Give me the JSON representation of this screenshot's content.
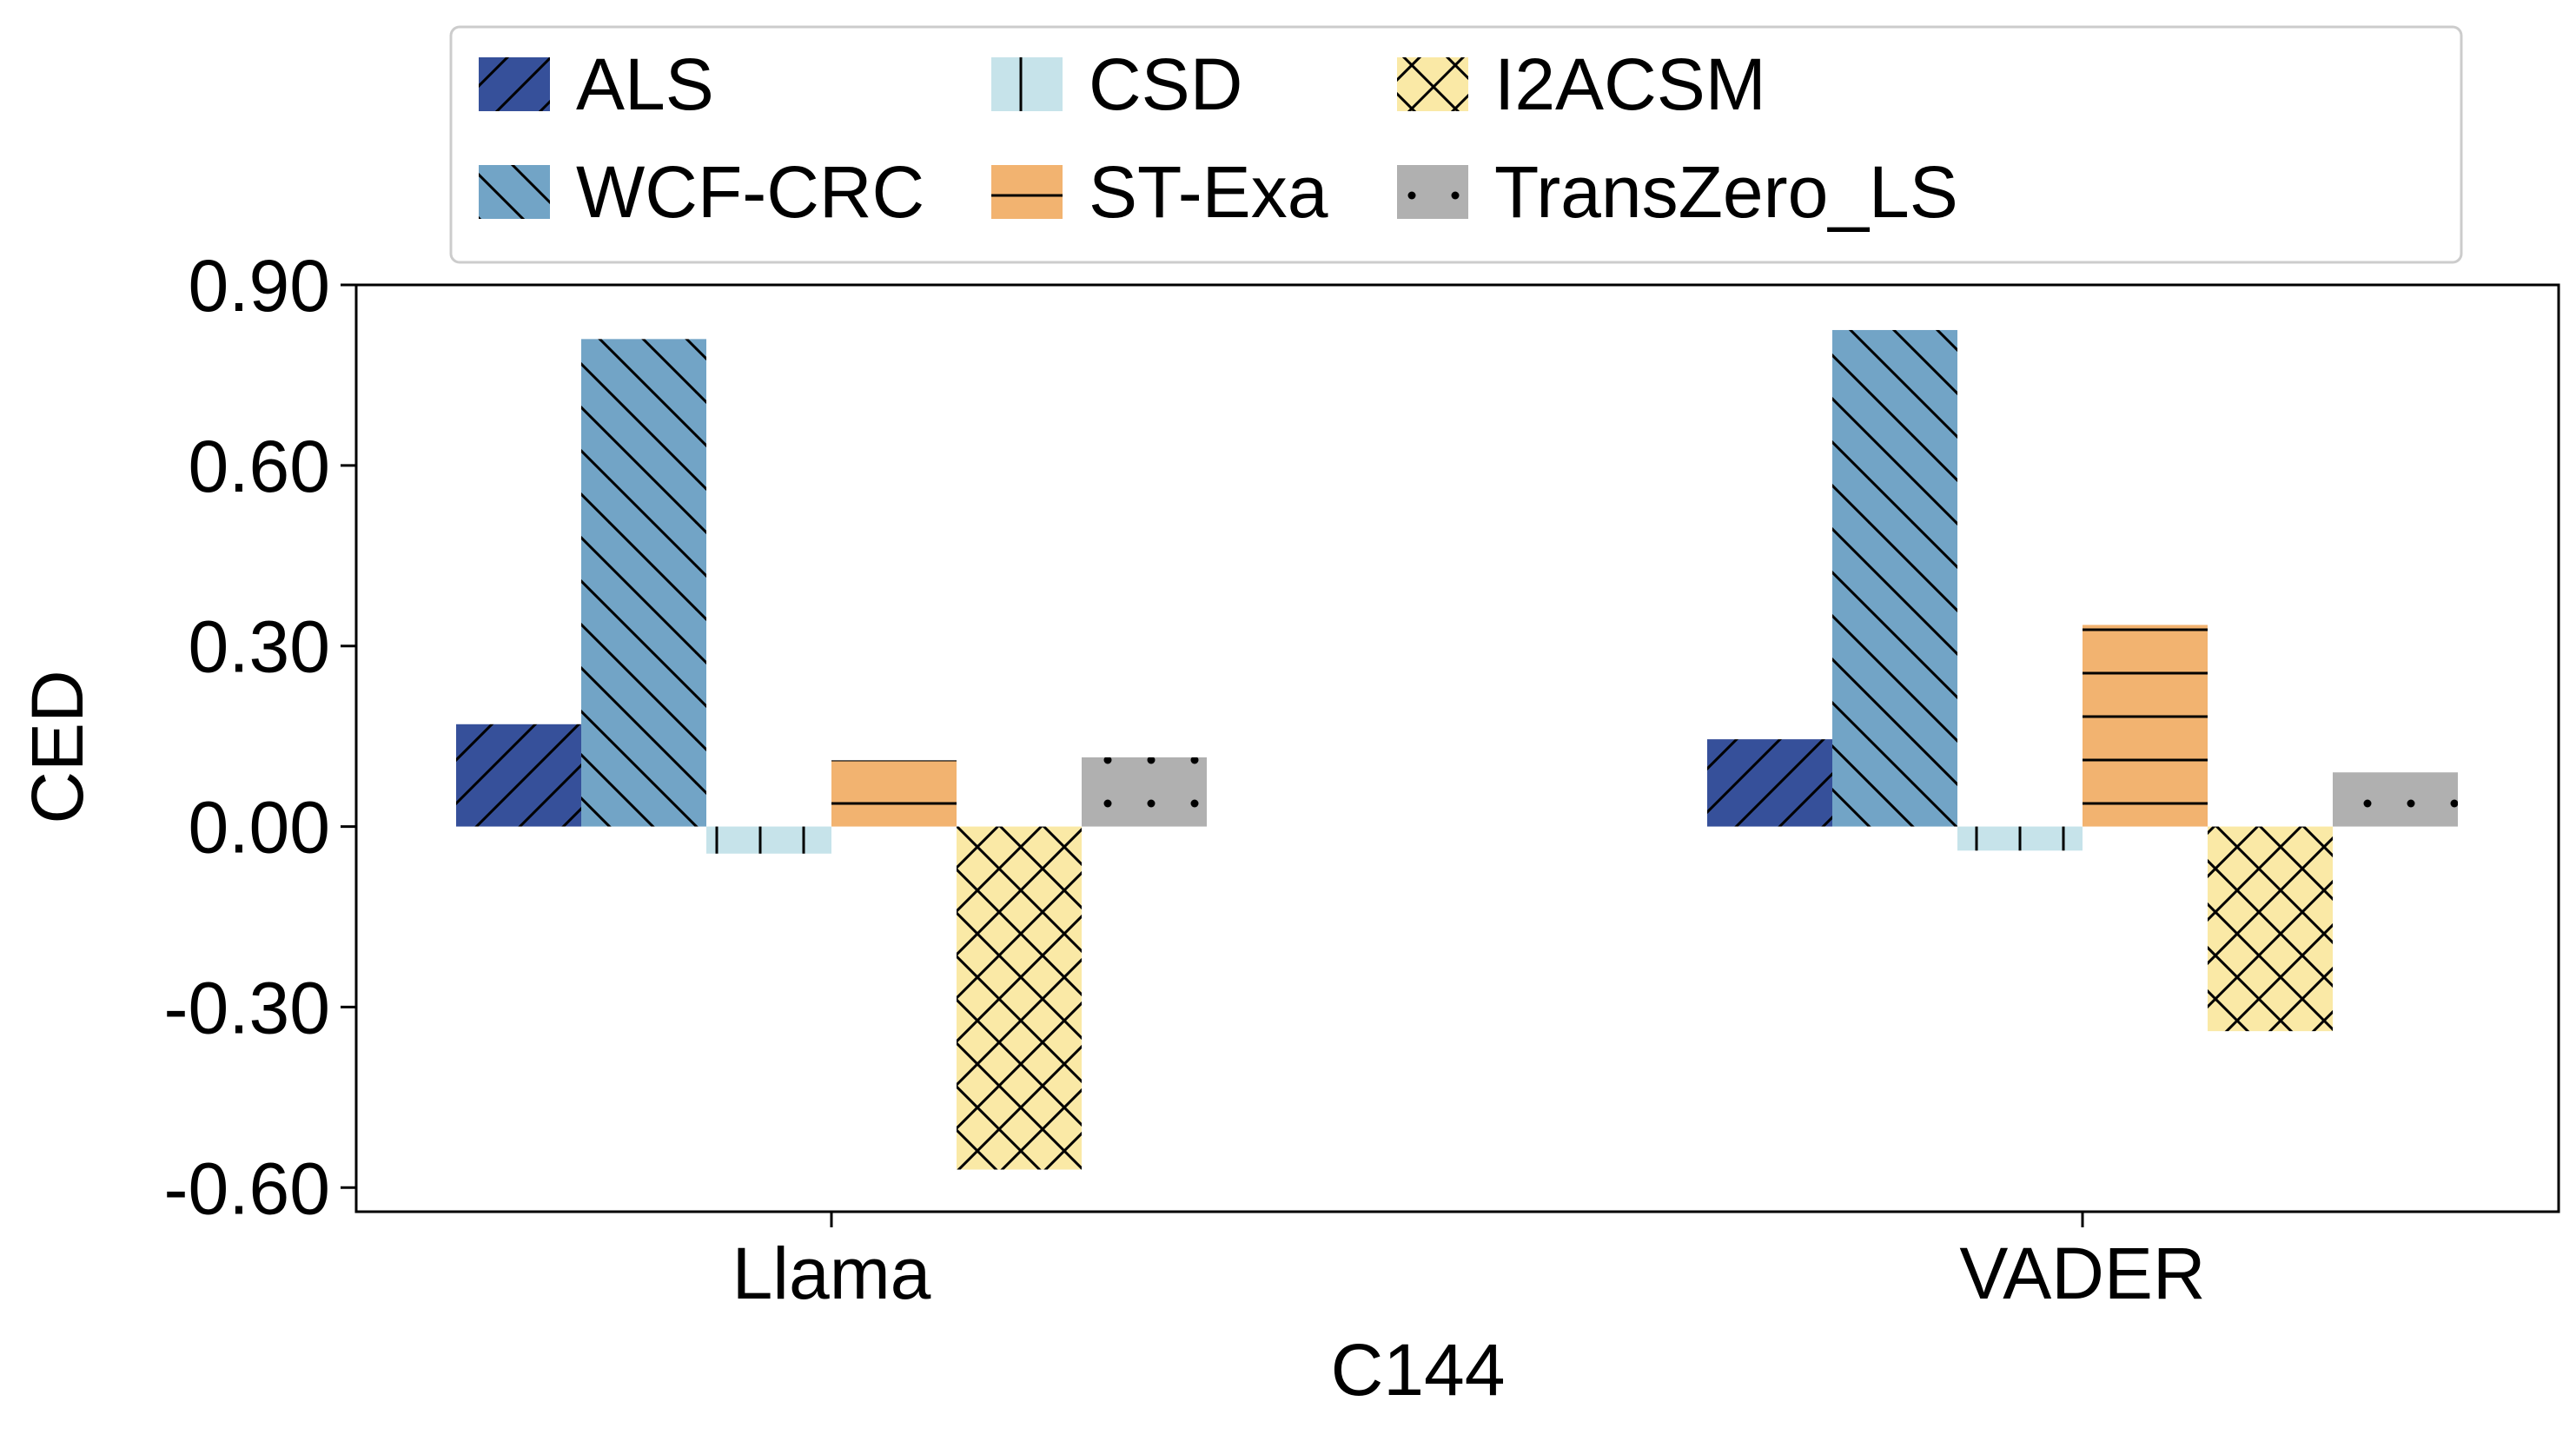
{
  "chart_data": {
    "type": "bar",
    "xlabel": "C144",
    "ylabel": "CED",
    "ylim": [
      -0.64,
      0.9
    ],
    "yticks": [
      0.9,
      0.6,
      0.3,
      0.0,
      -0.3,
      -0.6
    ],
    "ytick_labels": [
      "0.90",
      "0.60",
      "0.30",
      "0.00",
      "-0.30",
      "-0.60"
    ],
    "categories": [
      "Llama",
      "VADER"
    ],
    "legend_position": "top-center",
    "grid": false,
    "series": [
      {
        "name": "ALS",
        "values": [
          0.17,
          0.145
        ],
        "color": "#36509a",
        "hatch": "diag-up"
      },
      {
        "name": "WCF-CRC",
        "values": [
          0.81,
          0.825
        ],
        "color": "#72a4c6",
        "hatch": "diag-down"
      },
      {
        "name": "CSD",
        "values": [
          -0.045,
          -0.04
        ],
        "color": "#c6e3ea",
        "hatch": "vertical"
      },
      {
        "name": "ST-Exa",
        "values": [
          0.11,
          0.335
        ],
        "color": "#f2b370",
        "hatch": "horizontal"
      },
      {
        "name": "I2ACSM",
        "values": [
          -0.57,
          -0.34
        ],
        "color": "#fae9a6",
        "hatch": "cross"
      },
      {
        "name": "TransZero_LS",
        "values": [
          0.115,
          0.09
        ],
        "color": "#b0b0b0",
        "hatch": "dots"
      }
    ]
  }
}
